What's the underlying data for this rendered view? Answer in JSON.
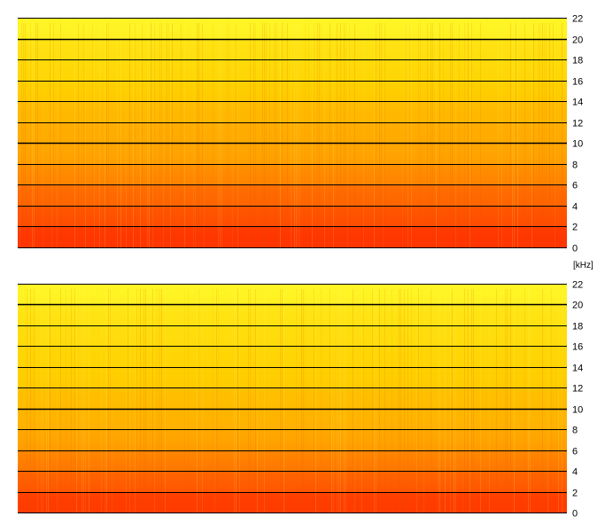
{
  "chart_data": [
    {
      "type": "heatmap",
      "title": "",
      "xlabel": "",
      "ylabel": "",
      "yunit": "[kHz]",
      "ylim": [
        0,
        22
      ],
      "yticks": [
        "0",
        "2",
        "4",
        "6",
        "8",
        "10",
        "12",
        "14",
        "16",
        "18",
        "20",
        "22"
      ],
      "grid": true,
      "colormap": [
        "#ff1a00",
        "#ff7800",
        "#ffd000",
        "#ffff30"
      ],
      "band_levels": [
        {
          "from_khz": 0,
          "to_khz": 2,
          "level": 0.1
        },
        {
          "from_khz": 2,
          "to_khz": 4,
          "level": 0.2
        },
        {
          "from_khz": 4,
          "to_khz": 6,
          "level": 0.28
        },
        {
          "from_khz": 6,
          "to_khz": 8,
          "level": 0.4
        },
        {
          "from_khz": 8,
          "to_khz": 10,
          "level": 0.5
        },
        {
          "from_khz": 10,
          "to_khz": 12,
          "level": 0.53
        },
        {
          "from_khz": 12,
          "to_khz": 14,
          "level": 0.58
        },
        {
          "from_khz": 14,
          "to_khz": 16,
          "level": 0.66
        },
        {
          "from_khz": 16,
          "to_khz": 18,
          "level": 0.72
        },
        {
          "from_khz": 18,
          "to_khz": 20,
          "level": 0.78
        },
        {
          "from_khz": 20,
          "to_khz": 22,
          "level": 0.92
        }
      ]
    },
    {
      "type": "heatmap",
      "title": "",
      "xlabel": "",
      "ylabel": "",
      "ylim": [
        0,
        22
      ],
      "yticks": [
        "0",
        "2",
        "4",
        "6",
        "8",
        "10",
        "12",
        "14",
        "16",
        "18",
        "20",
        "22"
      ],
      "grid": true,
      "colormap": [
        "#ff1a00",
        "#ff7800",
        "#ffd000",
        "#ffff30"
      ],
      "band_levels": [
        {
          "from_khz": 0,
          "to_khz": 2,
          "level": 0.12
        },
        {
          "from_khz": 2,
          "to_khz": 4,
          "level": 0.24
        },
        {
          "from_khz": 4,
          "to_khz": 6,
          "level": 0.36
        },
        {
          "from_khz": 6,
          "to_khz": 8,
          "level": 0.5
        },
        {
          "from_khz": 8,
          "to_khz": 10,
          "level": 0.56
        },
        {
          "from_khz": 10,
          "to_khz": 12,
          "level": 0.6
        },
        {
          "from_khz": 12,
          "to_khz": 14,
          "level": 0.66
        },
        {
          "from_khz": 14,
          "to_khz": 16,
          "level": 0.7
        },
        {
          "from_khz": 16,
          "to_khz": 18,
          "level": 0.75
        },
        {
          "from_khz": 18,
          "to_khz": 20,
          "level": 0.8
        },
        {
          "from_khz": 20,
          "to_khz": 22,
          "level": 0.92
        }
      ]
    }
  ]
}
